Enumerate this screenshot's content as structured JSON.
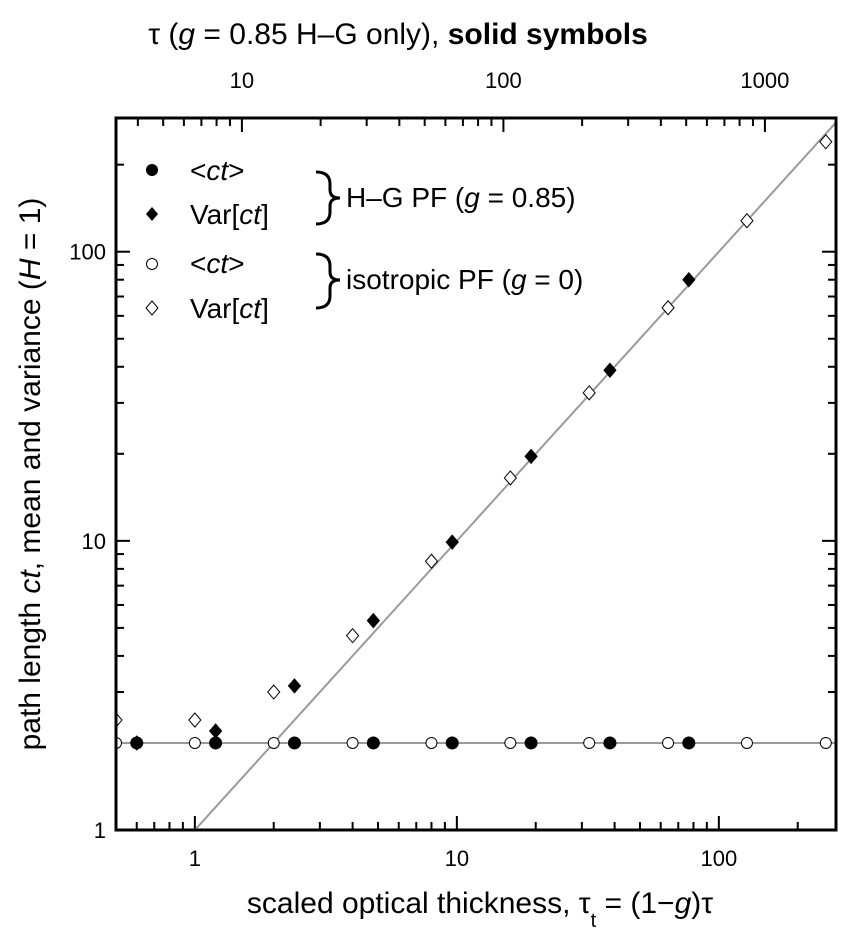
{
  "chart_data": {
    "type": "scatter",
    "x_scale": "log",
    "y_scale": "log",
    "xlim": [
      0.5,
      280
    ],
    "ylim": [
      1,
      290
    ],
    "top_xlim": [
      3.3,
      1870
    ],
    "grid": false,
    "xlabel": {
      "main": "scaled optical thickness, ",
      "tau": "τ",
      "sub": "t",
      "eq": " = (1−",
      "g": "g",
      "end": ")τ"
    },
    "ylabel": {
      "pre": "path length ",
      "ct": "ct",
      "mid": ", mean and variance (",
      "H": "H",
      "end": " = 1)"
    },
    "top_xlabel": {
      "pre": "τ (",
      "g": "g",
      "mid": " = 0.85 H–G only), ",
      "bold": "solid symbols"
    },
    "x_ticks": [
      {
        "value": 1,
        "label": "1"
      },
      {
        "value": 10,
        "label": "10"
      },
      {
        "value": 100,
        "label": "100"
      }
    ],
    "y_ticks": [
      {
        "value": 1,
        "label": "1"
      },
      {
        "value": 10,
        "label": "10"
      },
      {
        "value": 100,
        "label": "100"
      }
    ],
    "top_x_ticks": [
      {
        "value": 10,
        "label": "10"
      },
      {
        "value": 100,
        "label": "100"
      },
      {
        "value": 1000,
        "label": "1000"
      }
    ],
    "legend": {
      "position": "top-left",
      "entries": [
        {
          "pre": "<",
          "ct": "ct",
          "post": ">",
          "marker": "circle",
          "filled": true
        },
        {
          "pre": "Var[",
          "ct": "ct",
          "post": "]",
          "marker": "diamond",
          "filled": true
        },
        {
          "pre": "<",
          "ct": "ct",
          "post": ">",
          "marker": "circle",
          "filled": false
        },
        {
          "pre": "Var[",
          "ct": "ct",
          "post": "]",
          "marker": "diamond",
          "filled": false
        }
      ],
      "groups": [
        {
          "pre": "H–G PF (",
          "g": "g",
          "post": " = 0.85)"
        },
        {
          "pre": "isotropic PF (",
          "g": "g",
          "post": " = 0)"
        }
      ]
    },
    "series": [
      {
        "name": "<ct> H–G PF (g = 0.85)",
        "marker": "circle",
        "filled": true,
        "x": [
          0.6,
          1.2,
          2.4,
          4.8,
          9.6,
          19.2,
          38.4,
          76.8
        ],
        "y": [
          2,
          2,
          2,
          2,
          2,
          2,
          2,
          2
        ]
      },
      {
        "name": "Var[ct] H–G PF (g = 0.85)",
        "marker": "diamond",
        "filled": true,
        "x": [
          0.6,
          1.2,
          2.4,
          4.8,
          9.6,
          19.2,
          38.4,
          76.8
        ],
        "y": [
          2.0,
          2.2,
          3.15,
          5.3,
          9.9,
          19.6,
          38.9,
          80
        ]
      },
      {
        "name": "<ct> isotropic PF (g = 0)",
        "marker": "circle",
        "filled": false,
        "x": [
          0.5,
          1,
          2,
          4,
          8,
          16,
          32,
          64,
          128,
          256
        ],
        "y": [
          2,
          2,
          2,
          2,
          2,
          2,
          2,
          2,
          2,
          2
        ]
      },
      {
        "name": "Var[ct] isotropic PF (g = 0)",
        "marker": "diamond",
        "filled": false,
        "x": [
          0.5,
          1,
          2,
          4,
          8,
          16,
          32,
          64,
          128,
          256
        ],
        "y": [
          2.4,
          2.4,
          3.0,
          4.7,
          8.5,
          16.5,
          32.5,
          64,
          128,
          240
        ]
      }
    ],
    "reference_lines": [
      {
        "kind": "y = x",
        "color": "#9a9a9a"
      },
      {
        "kind": "y = 2",
        "color": "#9a9a9a"
      }
    ]
  }
}
